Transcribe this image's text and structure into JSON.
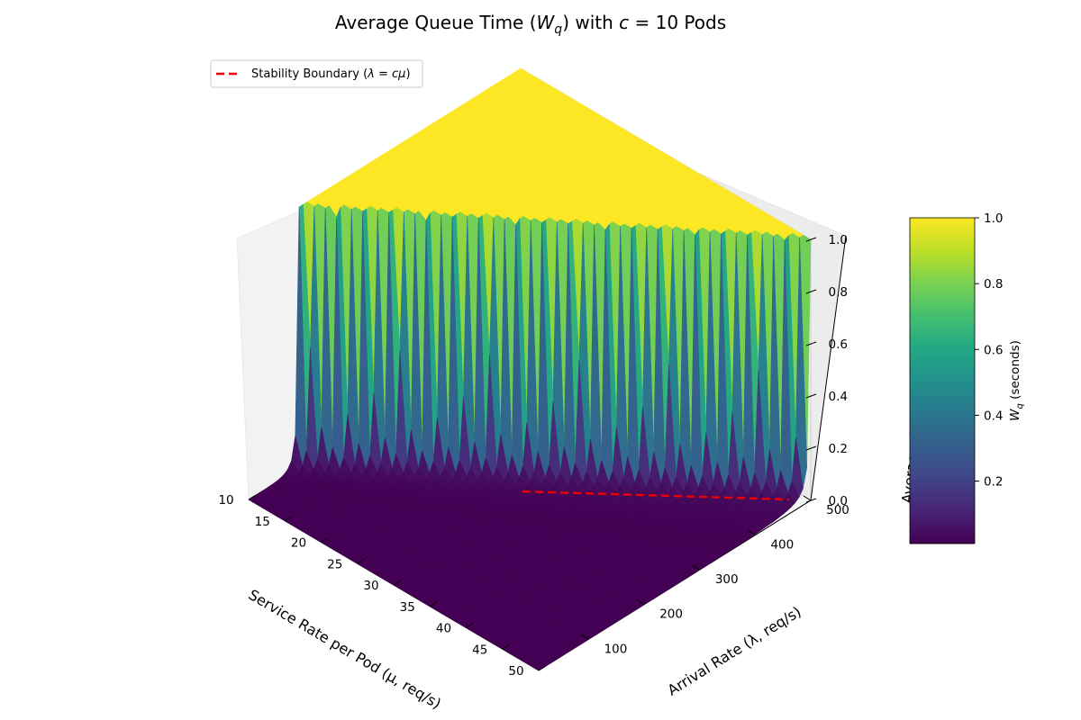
{
  "chart_data": {
    "type": "surface3d",
    "title": "Average Queue Time (W_q) with c = 10 Pods",
    "title_parts": [
      "Average Queue Time (",
      "W",
      "q",
      ") with ",
      "c",
      " = 10 Pods"
    ],
    "servers_c": 10,
    "x_axis": {
      "label": "Service Rate per Pod (μ, req/s)",
      "range": [
        10,
        50
      ],
      "ticks": [
        10,
        15,
        20,
        25,
        30,
        35,
        40,
        45,
        50
      ]
    },
    "y_axis": {
      "label": "Arrival Rate (λ, req/s)",
      "range": [
        10,
        500
      ],
      "ticks": [
        100,
        200,
        300,
        400,
        500
      ]
    },
    "z_axis": {
      "label": "Average Queue Time (W_q)",
      "label_visible": "Average Queue Time (W",
      "range": [
        0,
        1.0
      ],
      "clip_max": 1.0,
      "ticks": [
        "0.0",
        "0.2",
        "0.4",
        "0.6",
        "0.8",
        "1.0"
      ]
    },
    "colorbar": {
      "label": "W_q (seconds)",
      "label_parts": [
        "W",
        "q",
        " (seconds)"
      ],
      "range": [
        0.01,
        1.0
      ],
      "ticks": [
        "0.2",
        "0.4",
        "0.6",
        "0.8",
        "1.0"
      ],
      "colormap": "viridis"
    },
    "stability_boundary": {
      "label": "Stability Boundary (λ = cμ)",
      "label_parts": [
        "Stability Boundary (",
        "λ",
        " = ",
        "c",
        "μ",
        ")"
      ],
      "color": "#e8000b",
      "style": "dashed",
      "mu_range": [
        10,
        50
      ]
    },
    "legend_position": "top-left"
  }
}
